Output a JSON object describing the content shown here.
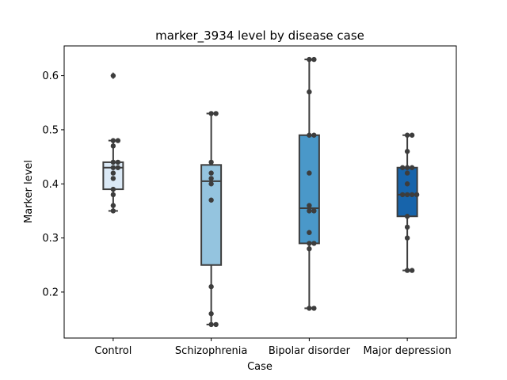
{
  "chart_data": {
    "type": "boxplot",
    "title": "marker_3934 level by disease case",
    "xlabel": "Case",
    "ylabel": "Marker level",
    "ylim": [
      0.115,
      0.655
    ],
    "yticks": [
      0.2,
      0.3,
      0.4,
      0.5,
      0.6
    ],
    "ytick_labels": [
      "0.2",
      "0.3",
      "0.4",
      "0.5",
      "0.6"
    ],
    "grid": false,
    "groups": [
      {
        "name": "Control",
        "color": "#dbe9f6",
        "whisker_low": 0.35,
        "q1": 0.39,
        "median": 0.43,
        "q3": 0.44,
        "whisker_high": 0.48,
        "outliers": [
          0.6
        ],
        "points": [
          0.6,
          0.48,
          0.48,
          0.47,
          0.44,
          0.44,
          0.43,
          0.43,
          0.42,
          0.41,
          0.39,
          0.38,
          0.36,
          0.35
        ]
      },
      {
        "name": "Schizophrenia",
        "color": "#94c4df",
        "whisker_low": 0.14,
        "q1": 0.25,
        "median": 0.405,
        "q3": 0.435,
        "whisker_high": 0.53,
        "outliers": [],
        "points": [
          0.53,
          0.53,
          0.44,
          0.42,
          0.41,
          0.4,
          0.37,
          0.21,
          0.16,
          0.14,
          0.14
        ]
      },
      {
        "name": "Bipolar disorder",
        "color": "#4a98c9",
        "whisker_low": 0.17,
        "q1": 0.29,
        "median": 0.355,
        "q3": 0.49,
        "whisker_high": 0.63,
        "outliers": [],
        "points": [
          0.63,
          0.63,
          0.57,
          0.49,
          0.49,
          0.42,
          0.36,
          0.35,
          0.35,
          0.31,
          0.29,
          0.29,
          0.28,
          0.17,
          0.17
        ]
      },
      {
        "name": "Major depression",
        "color": "#1764ab",
        "whisker_low": 0.24,
        "q1": 0.34,
        "median": 0.38,
        "q3": 0.43,
        "whisker_high": 0.49,
        "outliers": [],
        "points": [
          0.49,
          0.49,
          0.46,
          0.43,
          0.43,
          0.43,
          0.42,
          0.4,
          0.38,
          0.38,
          0.38,
          0.38,
          0.34,
          0.32,
          0.3,
          0.24,
          0.24
        ]
      }
    ]
  }
}
